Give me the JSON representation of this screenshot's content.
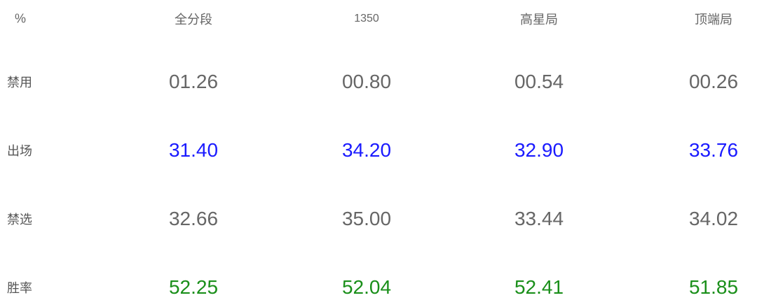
{
  "table": {
    "corner": "%",
    "columns": [
      "全分段",
      "1350",
      "高星局",
      "顶端局"
    ],
    "rows": [
      {
        "label": "禁用",
        "color": "#666666",
        "values": [
          "01.26",
          "00.80",
          "00.54",
          "00.26"
        ]
      },
      {
        "label": "出场",
        "color": "#1a1aff",
        "values": [
          "31.40",
          "34.20",
          "32.90",
          "33.76"
        ]
      },
      {
        "label": "禁选",
        "color": "#666666",
        "values": [
          "32.66",
          "35.00",
          "33.44",
          "34.02"
        ]
      },
      {
        "label": "胜率",
        "color": "#1a8f1a",
        "values": [
          "52.25",
          "52.04",
          "52.41",
          "51.85"
        ]
      }
    ]
  }
}
